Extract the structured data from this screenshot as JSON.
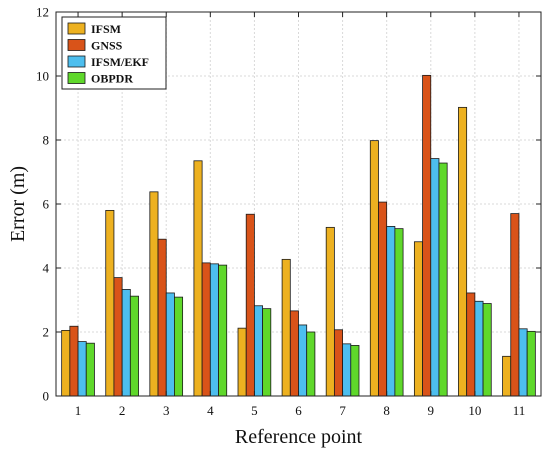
{
  "chart_data": {
    "type": "bar",
    "xlabel": "Reference point",
    "ylabel": "Error (m)",
    "ylim": [
      0,
      12
    ],
    "yticks": [
      0,
      2,
      4,
      6,
      8,
      10,
      12
    ],
    "grid": true,
    "legend_position": "top-left",
    "categories": [
      "1",
      "2",
      "3",
      "4",
      "5",
      "6",
      "7",
      "8",
      "9",
      "10",
      "11"
    ],
    "series": [
      {
        "name": "IFSM",
        "color": "#EDB120",
        "values": [
          2.05,
          5.8,
          6.38,
          7.35,
          2.12,
          4.27,
          5.27,
          7.98,
          4.82,
          9.02,
          1.24
        ]
      },
      {
        "name": "GNSS",
        "color": "#D95319",
        "values": [
          2.18,
          3.7,
          4.9,
          4.16,
          5.68,
          2.66,
          2.07,
          6.06,
          10.02,
          3.22,
          5.7
        ]
      },
      {
        "name": "IFSM/EKF",
        "color": "#4DBEEE",
        "values": [
          1.7,
          3.33,
          3.22,
          4.13,
          2.82,
          2.22,
          1.63,
          5.3,
          7.42,
          2.96,
          2.1
        ]
      },
      {
        "name": "OBPDR",
        "color": "#5FD82B",
        "values": [
          1.65,
          3.12,
          3.09,
          4.09,
          2.73,
          2.0,
          1.58,
          5.23,
          7.28,
          2.89,
          2.02
        ]
      }
    ]
  }
}
